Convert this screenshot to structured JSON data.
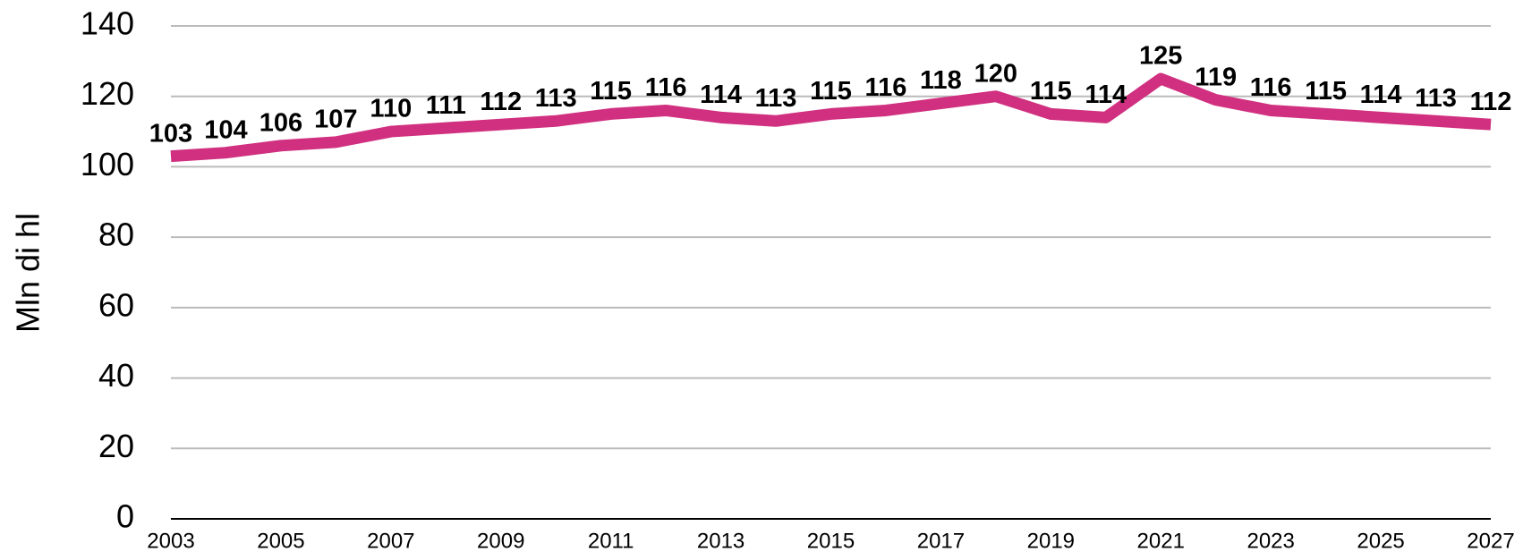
{
  "chart_data": {
    "type": "line",
    "ylabel": "Mln di hl",
    "x": [
      2003,
      2004,
      2005,
      2006,
      2007,
      2008,
      2009,
      2010,
      2011,
      2012,
      2013,
      2014,
      2015,
      2016,
      2017,
      2018,
      2019,
      2020,
      2021,
      2022,
      2023,
      2024,
      2025,
      2026,
      2027
    ],
    "values": [
      103,
      104,
      106,
      107,
      110,
      111,
      112,
      113,
      115,
      116,
      114,
      113,
      115,
      116,
      118,
      120,
      115,
      114,
      125,
      119,
      116,
      115,
      114,
      113,
      112
    ],
    "color": "#d0307f",
    "xlim": [
      2003,
      2027
    ],
    "xticks": [
      2003,
      2005,
      2007,
      2009,
      2011,
      2013,
      2015,
      2017,
      2019,
      2021,
      2023,
      2025,
      2027
    ],
    "ylim": [
      0,
      140
    ],
    "yticks": [
      0,
      20,
      40,
      60,
      80,
      100,
      120,
      140
    ],
    "grid": true
  }
}
